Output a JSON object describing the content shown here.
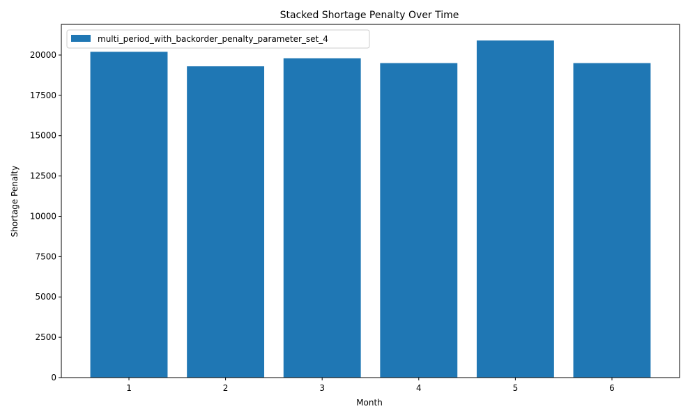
{
  "chart_data": {
    "type": "bar",
    "title": "Stacked Shortage Penalty Over Time",
    "xlabel": "Month",
    "ylabel": "Shortage Penalty",
    "categories": [
      "1",
      "2",
      "3",
      "4",
      "5",
      "6"
    ],
    "series": [
      {
        "name": "multi_period_with_backorder_penalty_parameter_set_4",
        "values": [
          20200,
          19300,
          19800,
          19500,
          20900,
          19500
        ],
        "color": "#1f77b4"
      }
    ],
    "ylim": [
      0,
      21900
    ],
    "yticks": [
      0,
      2500,
      5000,
      7500,
      10000,
      12500,
      15000,
      17500,
      20000
    ],
    "grid": false,
    "legend_position": "top-left"
  }
}
